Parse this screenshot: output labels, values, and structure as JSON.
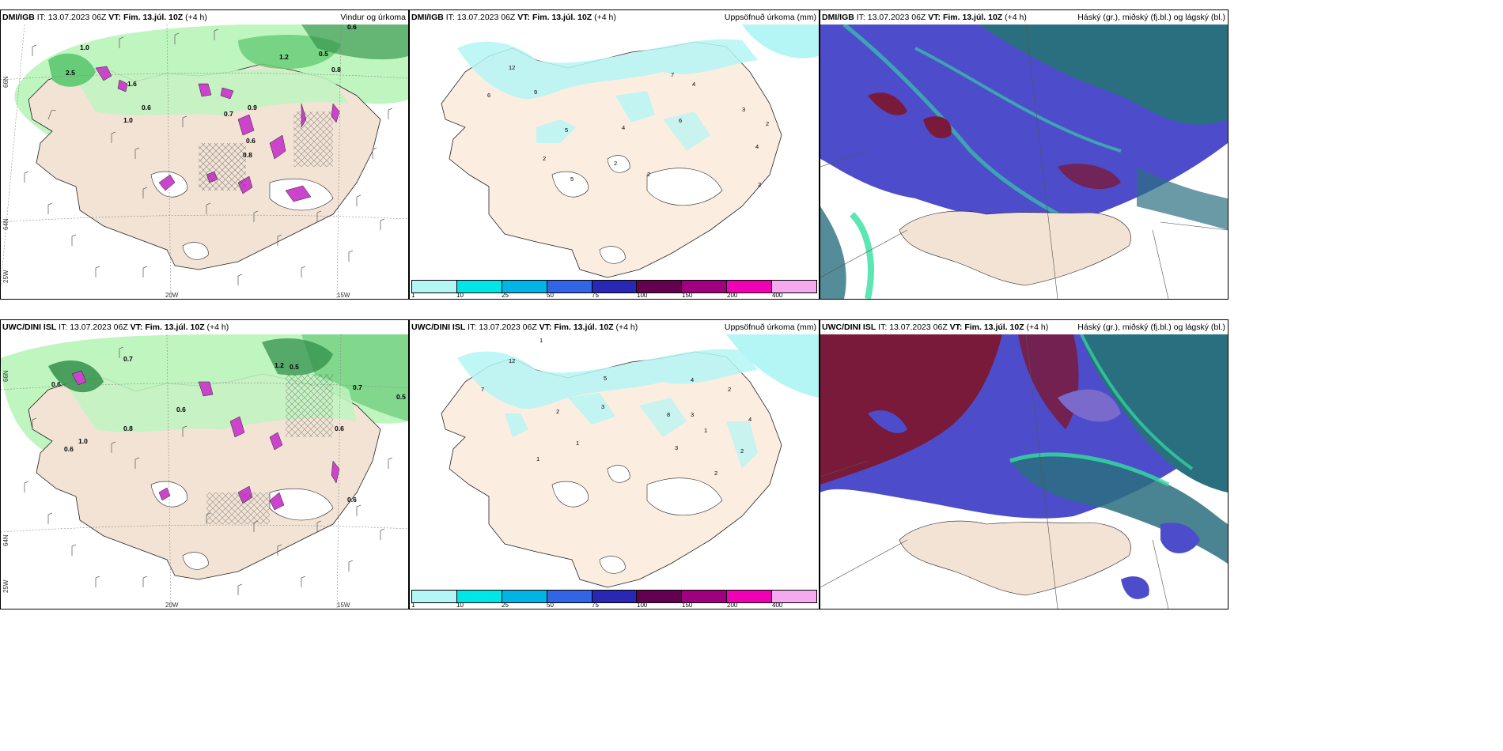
{
  "models": {
    "top": "DMI/IGB",
    "bottom": "UWC/DINI ISL"
  },
  "time": {
    "it_label": "IT:",
    "it_value": "13.07.2023 06Z",
    "vt_label": "VT:",
    "vt_value": "Fim. 13.júl. 10Z",
    "lead": "(+4 h)"
  },
  "titles": {
    "wind_precip": "Vindur og úrkoma",
    "accum_precip": "Uppsöfnuð úrkoma (mm)",
    "clouds": "Háský (gr.), miðský (fj.bl.) og lágský (bl.)"
  },
  "axes": {
    "lat66": "66N",
    "lat64": "64N",
    "lon25": "25W",
    "lon20": "20W",
    "lon15": "15W"
  },
  "colorbar": {
    "ticks": [
      "1",
      "10",
      "25",
      "50",
      "75",
      "100",
      "150",
      "200",
      "400"
    ],
    "colors": [
      "#b4f5f5",
      "#00e6e6",
      "#00b4e6",
      "#3264e6",
      "#2828b4",
      "#640050",
      "#a00080",
      "#f000b4",
      "#f5aaf0"
    ]
  },
  "map_colors": {
    "land": "#f2e3d5",
    "land_accum": "#fbeee1",
    "precip_light": "#bff5bf",
    "precip_mid": "#66cc77",
    "precip_heavy": "#2a8a44",
    "convective": "#cc44cc",
    "accum_cyan": "#b4f5f5",
    "cloud_high": "#2a6f7f",
    "cloud_mid": "#4d4dcc",
    "cloud_low": "#7a1a3a",
    "cloud_edge": "#33e0a0"
  },
  "labels": {
    "top_wind": [
      "1.0",
      "2.5",
      "1.6",
      "0.6",
      "1.0",
      "0.8",
      "0.6",
      "0.8",
      "0.9",
      "0.7",
      "1.2",
      "0.5",
      "0.6"
    ],
    "bottom_wind": [
      "0.7",
      "0.6",
      "0.8",
      "0.6",
      "1.0",
      "0.6",
      "0.5",
      "1.2",
      "0.7",
      "0.5",
      "0.6",
      "0.6"
    ],
    "top_accum": [
      "12",
      "6",
      "9",
      "5",
      "4",
      "6",
      "7",
      "4",
      "3",
      "2",
      "2",
      "4",
      "2",
      "2",
      "5",
      "2"
    ],
    "bottom_accum": [
      "1",
      "12",
      "7",
      "5",
      "3",
      "2",
      "1",
      "8",
      "4",
      "2",
      "3",
      "1",
      "2",
      "4",
      "3",
      "2",
      "1"
    ]
  }
}
